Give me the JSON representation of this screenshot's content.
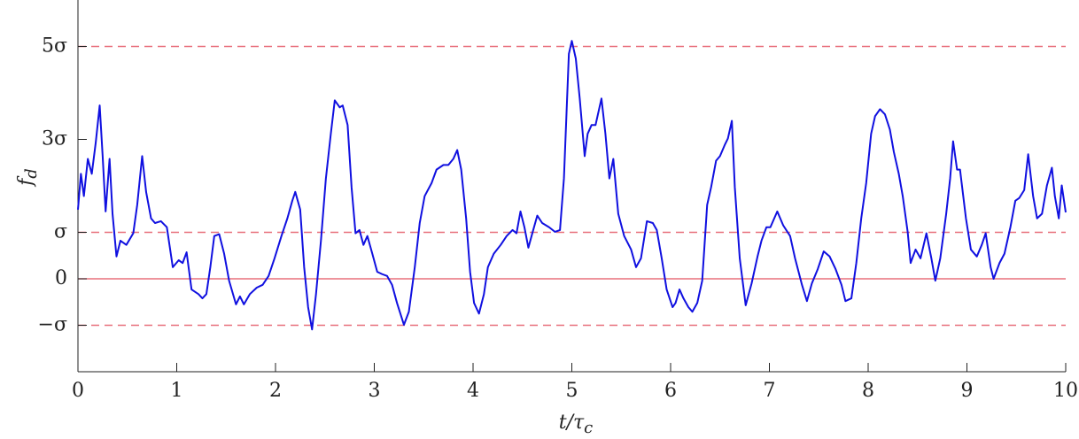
{
  "chart_data": {
    "type": "line",
    "xlabel": {
      "main": "t/τ",
      "sub": "c"
    },
    "ylabel": {
      "main": "f",
      "sub": "d"
    },
    "xlim": [
      0,
      10
    ],
    "ylim": [
      -2,
      6
    ],
    "xticks": [
      0,
      1,
      2,
      3,
      4,
      5,
      6,
      7,
      8,
      9,
      10
    ],
    "yticks": [
      {
        "value": -1,
        "label": "−σ"
      },
      0,
      {
        "value": 1,
        "label": "σ"
      },
      {
        "value": 3,
        "label": "3σ"
      },
      {
        "value": 5,
        "label": "5σ"
      }
    ],
    "reference_lines": [
      {
        "value": 5,
        "style": "dashed"
      },
      {
        "value": 1,
        "style": "dashed"
      },
      {
        "value": 0,
        "style": "solid"
      },
      {
        "value": -1,
        "style": "dashed"
      }
    ],
    "reference_color": "#e8707c",
    "series": [
      {
        "color": "#1010e0",
        "x": [
          0,
          0.03,
          0.06,
          0.1,
          0.14,
          0.18,
          0.22,
          0.25,
          0.28,
          0.32,
          0.35,
          0.39,
          0.43,
          0.49,
          0.56,
          0.6,
          0.65,
          0.69,
          0.74,
          0.78,
          0.84,
          0.9,
          0.96,
          1.02,
          1.06,
          1.1,
          1.15,
          1.22,
          1.26,
          1.3,
          1.34,
          1.38,
          1.43,
          1.48,
          1.53,
          1.6,
          1.64,
          1.68,
          1.74,
          1.81,
          1.87,
          1.93,
          1.99,
          2.06,
          2.12,
          2.17,
          2.2,
          2.25,
          2.29,
          2.33,
          2.37,
          2.41,
          2.46,
          2.51,
          2.56,
          2.6,
          2.65,
          2.68,
          2.73,
          2.77,
          2.81,
          2.85,
          2.89,
          2.93,
          2.98,
          3.03,
          3.08,
          3.13,
          3.18,
          3.23,
          3.3,
          3.35,
          3.41,
          3.46,
          3.51,
          3.58,
          3.63,
          3.7,
          3.75,
          3.8,
          3.84,
          3.88,
          3.93,
          3.97,
          4.01,
          4.06,
          4.11,
          4.15,
          4.21,
          4.28,
          4.34,
          4.4,
          4.44,
          4.48,
          4.52,
          4.56,
          4.6,
          4.65,
          4.7,
          4.77,
          4.83,
          4.88,
          4.92,
          4.97,
          5.0,
          5.04,
          5.08,
          5.13,
          5.16,
          5.2,
          5.24,
          5.3,
          5.34,
          5.38,
          5.42,
          5.47,
          5.53,
          5.6,
          5.65,
          5.7,
          5.76,
          5.82,
          5.86,
          5.91,
          5.96,
          6.02,
          6.05,
          6.09,
          6.13,
          6.18,
          6.22,
          6.27,
          6.32,
          6.37,
          6.41,
          6.46,
          6.5,
          6.55,
          6.58,
          6.62,
          6.65,
          6.7,
          6.76,
          6.82,
          6.88,
          6.92,
          6.97,
          7.01,
          7.08,
          7.14,
          7.21,
          7.26,
          7.33,
          7.38,
          7.43,
          7.49,
          7.55,
          7.61,
          7.67,
          7.73,
          7.77,
          7.83,
          7.88,
          7.93,
          7.98,
          8.03,
          8.07,
          8.12,
          8.17,
          8.22,
          8.26,
          8.31,
          8.35,
          8.4,
          8.43,
          8.48,
          8.53,
          8.59,
          8.64,
          8.68,
          8.73,
          8.79,
          8.83,
          8.86,
          8.9,
          8.93,
          8.99,
          9.04,
          9.1,
          9.15,
          9.19,
          9.24,
          9.27,
          9.33,
          9.38,
          9.44,
          9.49,
          9.53,
          9.58,
          9.62,
          9.67,
          9.71,
          9.76,
          9.81,
          9.86,
          9.89,
          9.93,
          9.96,
          10
        ],
        "values": [
          1.49,
          2.26,
          1.78,
          2.58,
          2.26,
          2.93,
          3.73,
          2.64,
          1.45,
          2.58,
          1.4,
          0.48,
          0.82,
          0.73,
          0.98,
          1.59,
          2.64,
          1.87,
          1.3,
          1.2,
          1.24,
          1.11,
          0.25,
          0.4,
          0.34,
          0.57,
          -0.23,
          -0.33,
          -0.42,
          -0.33,
          0.25,
          0.92,
          0.96,
          0.54,
          -0.04,
          -0.55,
          -0.38,
          -0.55,
          -0.33,
          -0.19,
          -0.13,
          0.06,
          0.44,
          0.92,
          1.3,
          1.68,
          1.87,
          1.49,
          0.25,
          -0.61,
          -1.09,
          -0.33,
          0.82,
          2.16,
          3.12,
          3.84,
          3.69,
          3.73,
          3.31,
          1.97,
          0.98,
          1.05,
          0.73,
          0.92,
          0.54,
          0.15,
          0.1,
          0.06,
          -0.13,
          -0.52,
          -0.99,
          -0.71,
          0.25,
          1.2,
          1.78,
          2.06,
          2.35,
          2.45,
          2.45,
          2.58,
          2.77,
          2.35,
          1.3,
          0.15,
          -0.52,
          -0.75,
          -0.33,
          0.25,
          0.54,
          0.73,
          0.92,
          1.05,
          0.98,
          1.45,
          1.11,
          0.67,
          0.98,
          1.36,
          1.2,
          1.11,
          1.01,
          1.05,
          2.16,
          4.84,
          5.12,
          4.74,
          3.88,
          2.64,
          3.12,
          3.31,
          3.31,
          3.88,
          3.12,
          2.16,
          2.58,
          1.4,
          0.92,
          0.63,
          0.25,
          0.44,
          1.24,
          1.2,
          1.05,
          0.44,
          -0.23,
          -0.61,
          -0.52,
          -0.23,
          -0.42,
          -0.61,
          -0.71,
          -0.52,
          -0.04,
          1.59,
          1.97,
          2.54,
          2.64,
          2.89,
          3.02,
          3.4,
          1.97,
          0.44,
          -0.57,
          -0.1,
          0.48,
          0.82,
          1.11,
          1.11,
          1.45,
          1.15,
          0.92,
          0.44,
          -0.13,
          -0.48,
          -0.1,
          0.21,
          0.59,
          0.48,
          0.21,
          -0.13,
          -0.48,
          -0.42,
          0.34,
          1.3,
          2.06,
          3.12,
          3.5,
          3.65,
          3.54,
          3.21,
          2.73,
          2.26,
          1.78,
          1.01,
          0.34,
          0.63,
          0.44,
          0.98,
          0.44,
          -0.04,
          0.44,
          1.4,
          2.16,
          2.96,
          2.35,
          2.35,
          1.3,
          0.63,
          0.48,
          0.73,
          0.98,
          0.25,
          0,
          0.34,
          0.54,
          1.11,
          1.68,
          1.74,
          1.91,
          2.68,
          1.78,
          1.3,
          1.4,
          2.01,
          2.39,
          1.78,
          1.3,
          2.01,
          1.43
        ]
      }
    ]
  }
}
